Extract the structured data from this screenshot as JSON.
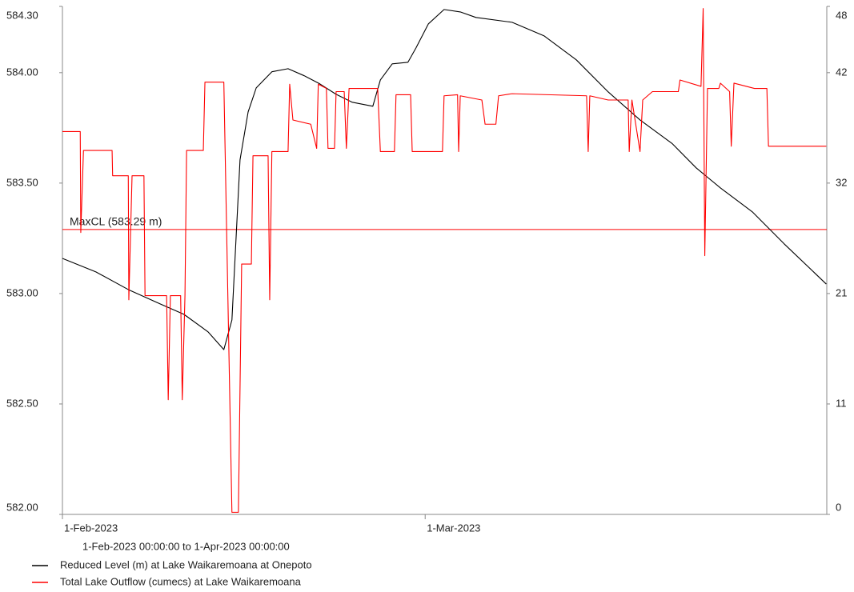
{
  "chart_data": {
    "type": "line",
    "subtitle": "1-Feb-2023 00:00:00 to  1-Apr-2023 00:00:00",
    "xlim": [
      "2023-02-01T00:00",
      "2023-04-01T00:00"
    ],
    "xticks": [
      {
        "value": "2023-02-01T00:00",
        "label": "1-Feb-2023"
      },
      {
        "value": "2023-03-01T00:00",
        "label": "1-Mar-2023"
      }
    ],
    "ylim": [
      582,
      584.3
    ],
    "yticks": [
      {
        "value": 582,
        "label": "582.00"
      },
      {
        "value": 582.5,
        "label": "582.50"
      },
      {
        "value": 583,
        "label": "583.00"
      },
      {
        "value": 583.5,
        "label": "583.50"
      },
      {
        "value": 584,
        "label": "584.00"
      },
      {
        "value": 584.3,
        "label": "584.30"
      }
    ],
    "y2lim": [
      0,
      48.3
    ],
    "y2ticks": [
      0,
      {
        "value": 10.5,
        "label": "11"
      },
      21,
      {
        "value": 31.5,
        "label": "32"
      },
      42,
      {
        "value": 48.3,
        "label": "48"
      }
    ],
    "grid": false,
    "hlines": [
      {
        "value": 583.29,
        "label": "MaxCL (583.29 m)",
        "color": "#ff0000"
      }
    ],
    "series": [
      {
        "name": "Reduced Level (m) at Lake Waikaremoana at Onepoto",
        "color": "#000000",
        "x": [
          "2023-02-01T00:00",
          "2023-02-03T14:00",
          "2023-02-06T02:00",
          "2023-02-08T13:00",
          "2023-02-10T09:00",
          "2023-02-12T06:00",
          "2023-02-13T11:00",
          "2023-02-14T02:00",
          "2023-02-14T17:00",
          "2023-02-15T08:00",
          "2023-02-15T23:00",
          "2023-02-17T04:00",
          "2023-02-18T10:00",
          "2023-02-19T16:00",
          "2023-02-20T21:00",
          "2023-02-22T03:00",
          "2023-02-23T09:00",
          "2023-02-24T23:00",
          "2023-02-25T13:00",
          "2023-02-26T11:00",
          "2023-02-27T16:00",
          "2023-02-28T07:00",
          "2023-03-01T06:00",
          "2023-03-02T11:00",
          "2023-03-03T17:00",
          "2023-03-04T22:00",
          "2023-03-07T17:00",
          "2023-03-10T04:00",
          "2023-03-12T16:00",
          "2023-03-15T03:00",
          "2023-03-17T14:00",
          "2023-03-20T02:00",
          "2023-03-21T22:00",
          "2023-03-23T19:00",
          "2023-03-26T06:00",
          "2023-03-28T17:00",
          "2023-03-31T23:00"
        ],
        "values": [
          583.159,
          583.098,
          583.018,
          582.953,
          582.906,
          582.826,
          582.746,
          582.88,
          583.605,
          583.822,
          583.931,
          584.004,
          584.018,
          583.986,
          583.949,
          583.902,
          583.866,
          583.848,
          583.967,
          584.04,
          584.047,
          584.112,
          584.221,
          584.286,
          584.275,
          584.25,
          584.228,
          584.167,
          584.058,
          583.913,
          583.786,
          583.678,
          583.569,
          583.478,
          583.37,
          583.225,
          583.043
        ]
      },
      {
        "name": "Total Lake Outflow (cumecs) at Lake Waikaremoana",
        "color": "#ff0000",
        "axis": "y2",
        "x": [
          "2023-02-01T00:00",
          "2023-02-02T09:00",
          "2023-02-02T10:00",
          "2023-02-02T15:00",
          "2023-02-04T20:00",
          "2023-02-04T21:00",
          "2023-02-06T02:00",
          "2023-02-06T03:00",
          "2023-02-06T09:00",
          "2023-02-07T07:00",
          "2023-02-07T09:00",
          "2023-02-09T01:00",
          "2023-02-09T04:00",
          "2023-02-09T08:00",
          "2023-02-10T03:00",
          "2023-02-10T06:00",
          "2023-02-10T11:00",
          "2023-02-10T14:00",
          "2023-02-11T21:00",
          "2023-02-12T00:00",
          "2023-02-13T11:00",
          "2023-02-14T02:00",
          "2023-02-14T14:00",
          "2023-02-14T20:00",
          "2023-02-15T14:00",
          "2023-02-15T17:00",
          "2023-02-16T21:00",
          "2023-02-17T00:00",
          "2023-02-17T04:00",
          "2023-02-18T10:00",
          "2023-02-18T13:00",
          "2023-02-18T19:00",
          "2023-02-20T04:00",
          "2023-02-20T15:00",
          "2023-02-20T18:00",
          "2023-02-21T09:00",
          "2023-02-21T12:00",
          "2023-02-22T00:00",
          "2023-02-22T03:00",
          "2023-02-22T18:00",
          "2023-02-22T22:00",
          "2023-02-23T03:00",
          "2023-02-25T08:00",
          "2023-02-25T13:00",
          "2023-02-26T15:00",
          "2023-02-26T18:00",
          "2023-02-27T21:00",
          "2023-02-28T00:00",
          "2023-03-02T08:00",
          "2023-03-02T11:00",
          "2023-03-03T12:00",
          "2023-03-03T14:00",
          "2023-03-03T17:00",
          "2023-03-05T09:00",
          "2023-03-05T15:00",
          "2023-03-06T11:00",
          "2023-03-06T16:00",
          "2023-03-07T17:00",
          "2023-03-13T11:00",
          "2023-03-13T14:00",
          "2023-03-13T17:00",
          "2023-03-15T03:00",
          "2023-03-16T16:00",
          "2023-03-16T18:00",
          "2023-03-16T23:00",
          "2023-03-17T14:00",
          "2023-03-17T19:00",
          "2023-03-18T13:00",
          "2023-03-20T13:00",
          "2023-03-20T16:00",
          "2023-03-22T07:00",
          "2023-03-22T11:00",
          "2023-03-22T14:00",
          "2023-03-22T19:00",
          "2023-03-23T16:00",
          "2023-03-23T19:00",
          "2023-03-24T12:00",
          "2023-03-24T15:00",
          "2023-03-24T20:00",
          "2023-03-26T10:00",
          "2023-03-27T09:00",
          "2023-03-27T12:00",
          "2023-03-31T23:00"
        ],
        "values": [
          36.4,
          36.4,
          26.8,
          34.6,
          34.6,
          32.2,
          32.2,
          20.4,
          32.2,
          32.2,
          20.8,
          20.8,
          10.9,
          20.8,
          20.8,
          10.9,
          20.8,
          34.6,
          34.6,
          41.1,
          41.1,
          0.2,
          0.2,
          23.8,
          23.8,
          34.1,
          34.1,
          20.4,
          34.5,
          34.5,
          40.9,
          37.5,
          37.1,
          34.8,
          40.9,
          40.5,
          34.8,
          34.8,
          40.2,
          40.2,
          34.8,
          40.5,
          40.5,
          34.5,
          34.5,
          39.9,
          39.9,
          34.5,
          34.5,
          39.8,
          39.9,
          34.5,
          39.8,
          39.4,
          37.1,
          37.1,
          39.8,
          40.0,
          39.8,
          34.5,
          39.8,
          39.4,
          39.4,
          34.5,
          39.4,
          34.5,
          39.4,
          40.2,
          40.2,
          41.3,
          40.7,
          48.1,
          24.6,
          40.5,
          40.5,
          41.0,
          40.2,
          35.0,
          41.0,
          40.5,
          40.5,
          35.0,
          35.0
        ]
      }
    ]
  }
}
